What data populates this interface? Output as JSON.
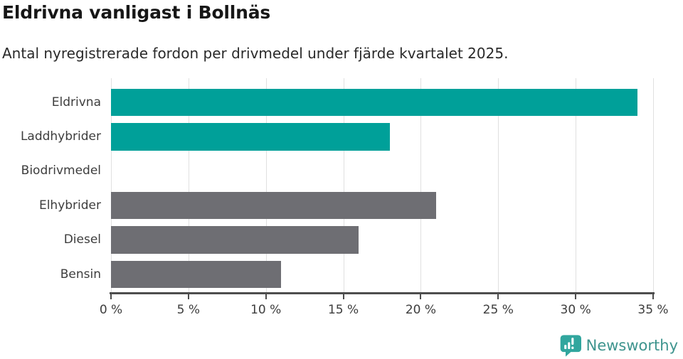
{
  "header": {
    "title": "Eldrivna vanligast i Bollnäs",
    "subtitle": "Antal nyregistrerade fordon per drivmedel under fjärde kvartalet 2025."
  },
  "chart_data": {
    "type": "bar",
    "orientation": "horizontal",
    "title": "Eldrivna vanligast i Bollnäs",
    "subtitle": "Antal nyregistrerade fordon per drivmedel under fjärde kvartalet 2025.",
    "categories": [
      "Eldrivna",
      "Laddhybrider",
      "Biodrivmedel",
      "Elhybrider",
      "Diesel",
      "Bensin"
    ],
    "values": [
      34,
      18,
      0,
      21,
      16,
      11
    ],
    "unit": "%",
    "xlabel": "",
    "ylabel": "",
    "xlim": [
      0,
      35
    ],
    "x_tick_values": [
      0,
      5,
      10,
      15,
      20,
      25,
      30,
      35
    ],
    "x_tick_labels": [
      "0 %",
      "5 %",
      "10 %",
      "15 %",
      "20 %",
      "25 %",
      "30 %",
      "35 %"
    ],
    "grid": true,
    "legend": false,
    "bar_colors": [
      "#00a099",
      "#00a099",
      "#00a099",
      "#6e6e73",
      "#6e6e73",
      "#6e6e73"
    ]
  },
  "colors": {
    "teal": "#00a099",
    "gray": "#6e6e73",
    "axis": "#4d4d4d",
    "gridline": "#e0e0e0",
    "label_text": "#3d3d3d",
    "logo_text": "#3e948e",
    "logo_icon": "#31a69e"
  },
  "footer": {
    "brand": "Newsworthy"
  }
}
